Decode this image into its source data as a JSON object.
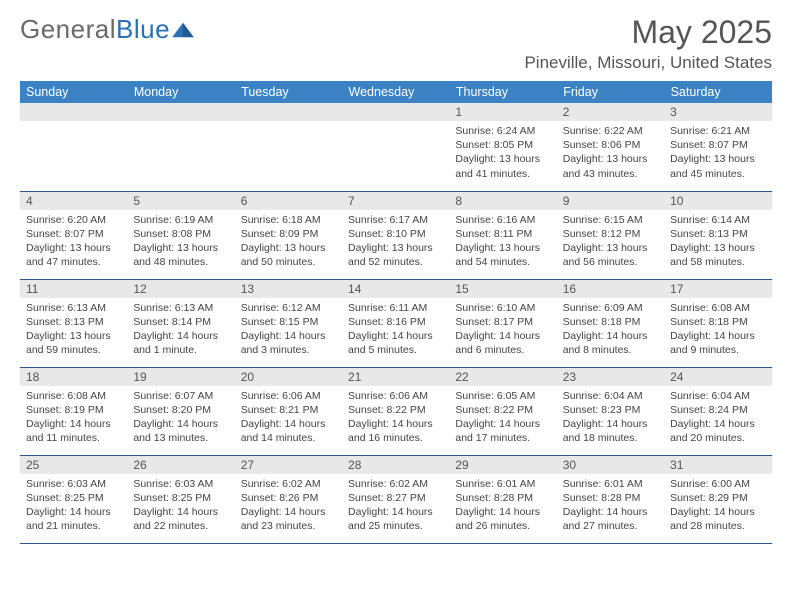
{
  "logo": {
    "text_gray": "General",
    "text_blue": "Blue"
  },
  "title": "May 2025",
  "location": "Pineville, Missouri, United States",
  "colors": {
    "header_bg": "#3b82c4",
    "header_text": "#ffffff",
    "daynum_bg": "#e8e8e8",
    "row_divider": "#2a5a8a",
    "body_text": "#444444",
    "title_text": "#555555",
    "logo_gray": "#6a6a6a",
    "logo_blue": "#2a72b5"
  },
  "weekdays": [
    "Sunday",
    "Monday",
    "Tuesday",
    "Wednesday",
    "Thursday",
    "Friday",
    "Saturday"
  ],
  "weeks": [
    [
      null,
      null,
      null,
      null,
      {
        "n": "1",
        "sr": "6:24 AM",
        "ss": "8:05 PM",
        "dl": "13 hours and 41 minutes."
      },
      {
        "n": "2",
        "sr": "6:22 AM",
        "ss": "8:06 PM",
        "dl": "13 hours and 43 minutes."
      },
      {
        "n": "3",
        "sr": "6:21 AM",
        "ss": "8:07 PM",
        "dl": "13 hours and 45 minutes."
      }
    ],
    [
      {
        "n": "4",
        "sr": "6:20 AM",
        "ss": "8:07 PM",
        "dl": "13 hours and 47 minutes."
      },
      {
        "n": "5",
        "sr": "6:19 AM",
        "ss": "8:08 PM",
        "dl": "13 hours and 48 minutes."
      },
      {
        "n": "6",
        "sr": "6:18 AM",
        "ss": "8:09 PM",
        "dl": "13 hours and 50 minutes."
      },
      {
        "n": "7",
        "sr": "6:17 AM",
        "ss": "8:10 PM",
        "dl": "13 hours and 52 minutes."
      },
      {
        "n": "8",
        "sr": "6:16 AM",
        "ss": "8:11 PM",
        "dl": "13 hours and 54 minutes."
      },
      {
        "n": "9",
        "sr": "6:15 AM",
        "ss": "8:12 PM",
        "dl": "13 hours and 56 minutes."
      },
      {
        "n": "10",
        "sr": "6:14 AM",
        "ss": "8:13 PM",
        "dl": "13 hours and 58 minutes."
      }
    ],
    [
      {
        "n": "11",
        "sr": "6:13 AM",
        "ss": "8:13 PM",
        "dl": "13 hours and 59 minutes."
      },
      {
        "n": "12",
        "sr": "6:13 AM",
        "ss": "8:14 PM",
        "dl": "14 hours and 1 minute."
      },
      {
        "n": "13",
        "sr": "6:12 AM",
        "ss": "8:15 PM",
        "dl": "14 hours and 3 minutes."
      },
      {
        "n": "14",
        "sr": "6:11 AM",
        "ss": "8:16 PM",
        "dl": "14 hours and 5 minutes."
      },
      {
        "n": "15",
        "sr": "6:10 AM",
        "ss": "8:17 PM",
        "dl": "14 hours and 6 minutes."
      },
      {
        "n": "16",
        "sr": "6:09 AM",
        "ss": "8:18 PM",
        "dl": "14 hours and 8 minutes."
      },
      {
        "n": "17",
        "sr": "6:08 AM",
        "ss": "8:18 PM",
        "dl": "14 hours and 9 minutes."
      }
    ],
    [
      {
        "n": "18",
        "sr": "6:08 AM",
        "ss": "8:19 PM",
        "dl": "14 hours and 11 minutes."
      },
      {
        "n": "19",
        "sr": "6:07 AM",
        "ss": "8:20 PM",
        "dl": "14 hours and 13 minutes."
      },
      {
        "n": "20",
        "sr": "6:06 AM",
        "ss": "8:21 PM",
        "dl": "14 hours and 14 minutes."
      },
      {
        "n": "21",
        "sr": "6:06 AM",
        "ss": "8:22 PM",
        "dl": "14 hours and 16 minutes."
      },
      {
        "n": "22",
        "sr": "6:05 AM",
        "ss": "8:22 PM",
        "dl": "14 hours and 17 minutes."
      },
      {
        "n": "23",
        "sr": "6:04 AM",
        "ss": "8:23 PM",
        "dl": "14 hours and 18 minutes."
      },
      {
        "n": "24",
        "sr": "6:04 AM",
        "ss": "8:24 PM",
        "dl": "14 hours and 20 minutes."
      }
    ],
    [
      {
        "n": "25",
        "sr": "6:03 AM",
        "ss": "8:25 PM",
        "dl": "14 hours and 21 minutes."
      },
      {
        "n": "26",
        "sr": "6:03 AM",
        "ss": "8:25 PM",
        "dl": "14 hours and 22 minutes."
      },
      {
        "n": "27",
        "sr": "6:02 AM",
        "ss": "8:26 PM",
        "dl": "14 hours and 23 minutes."
      },
      {
        "n": "28",
        "sr": "6:02 AM",
        "ss": "8:27 PM",
        "dl": "14 hours and 25 minutes."
      },
      {
        "n": "29",
        "sr": "6:01 AM",
        "ss": "8:28 PM",
        "dl": "14 hours and 26 minutes."
      },
      {
        "n": "30",
        "sr": "6:01 AM",
        "ss": "8:28 PM",
        "dl": "14 hours and 27 minutes."
      },
      {
        "n": "31",
        "sr": "6:00 AM",
        "ss": "8:29 PM",
        "dl": "14 hours and 28 minutes."
      }
    ]
  ],
  "labels": {
    "sunrise": "Sunrise:",
    "sunset": "Sunset:",
    "daylight": "Daylight:"
  }
}
